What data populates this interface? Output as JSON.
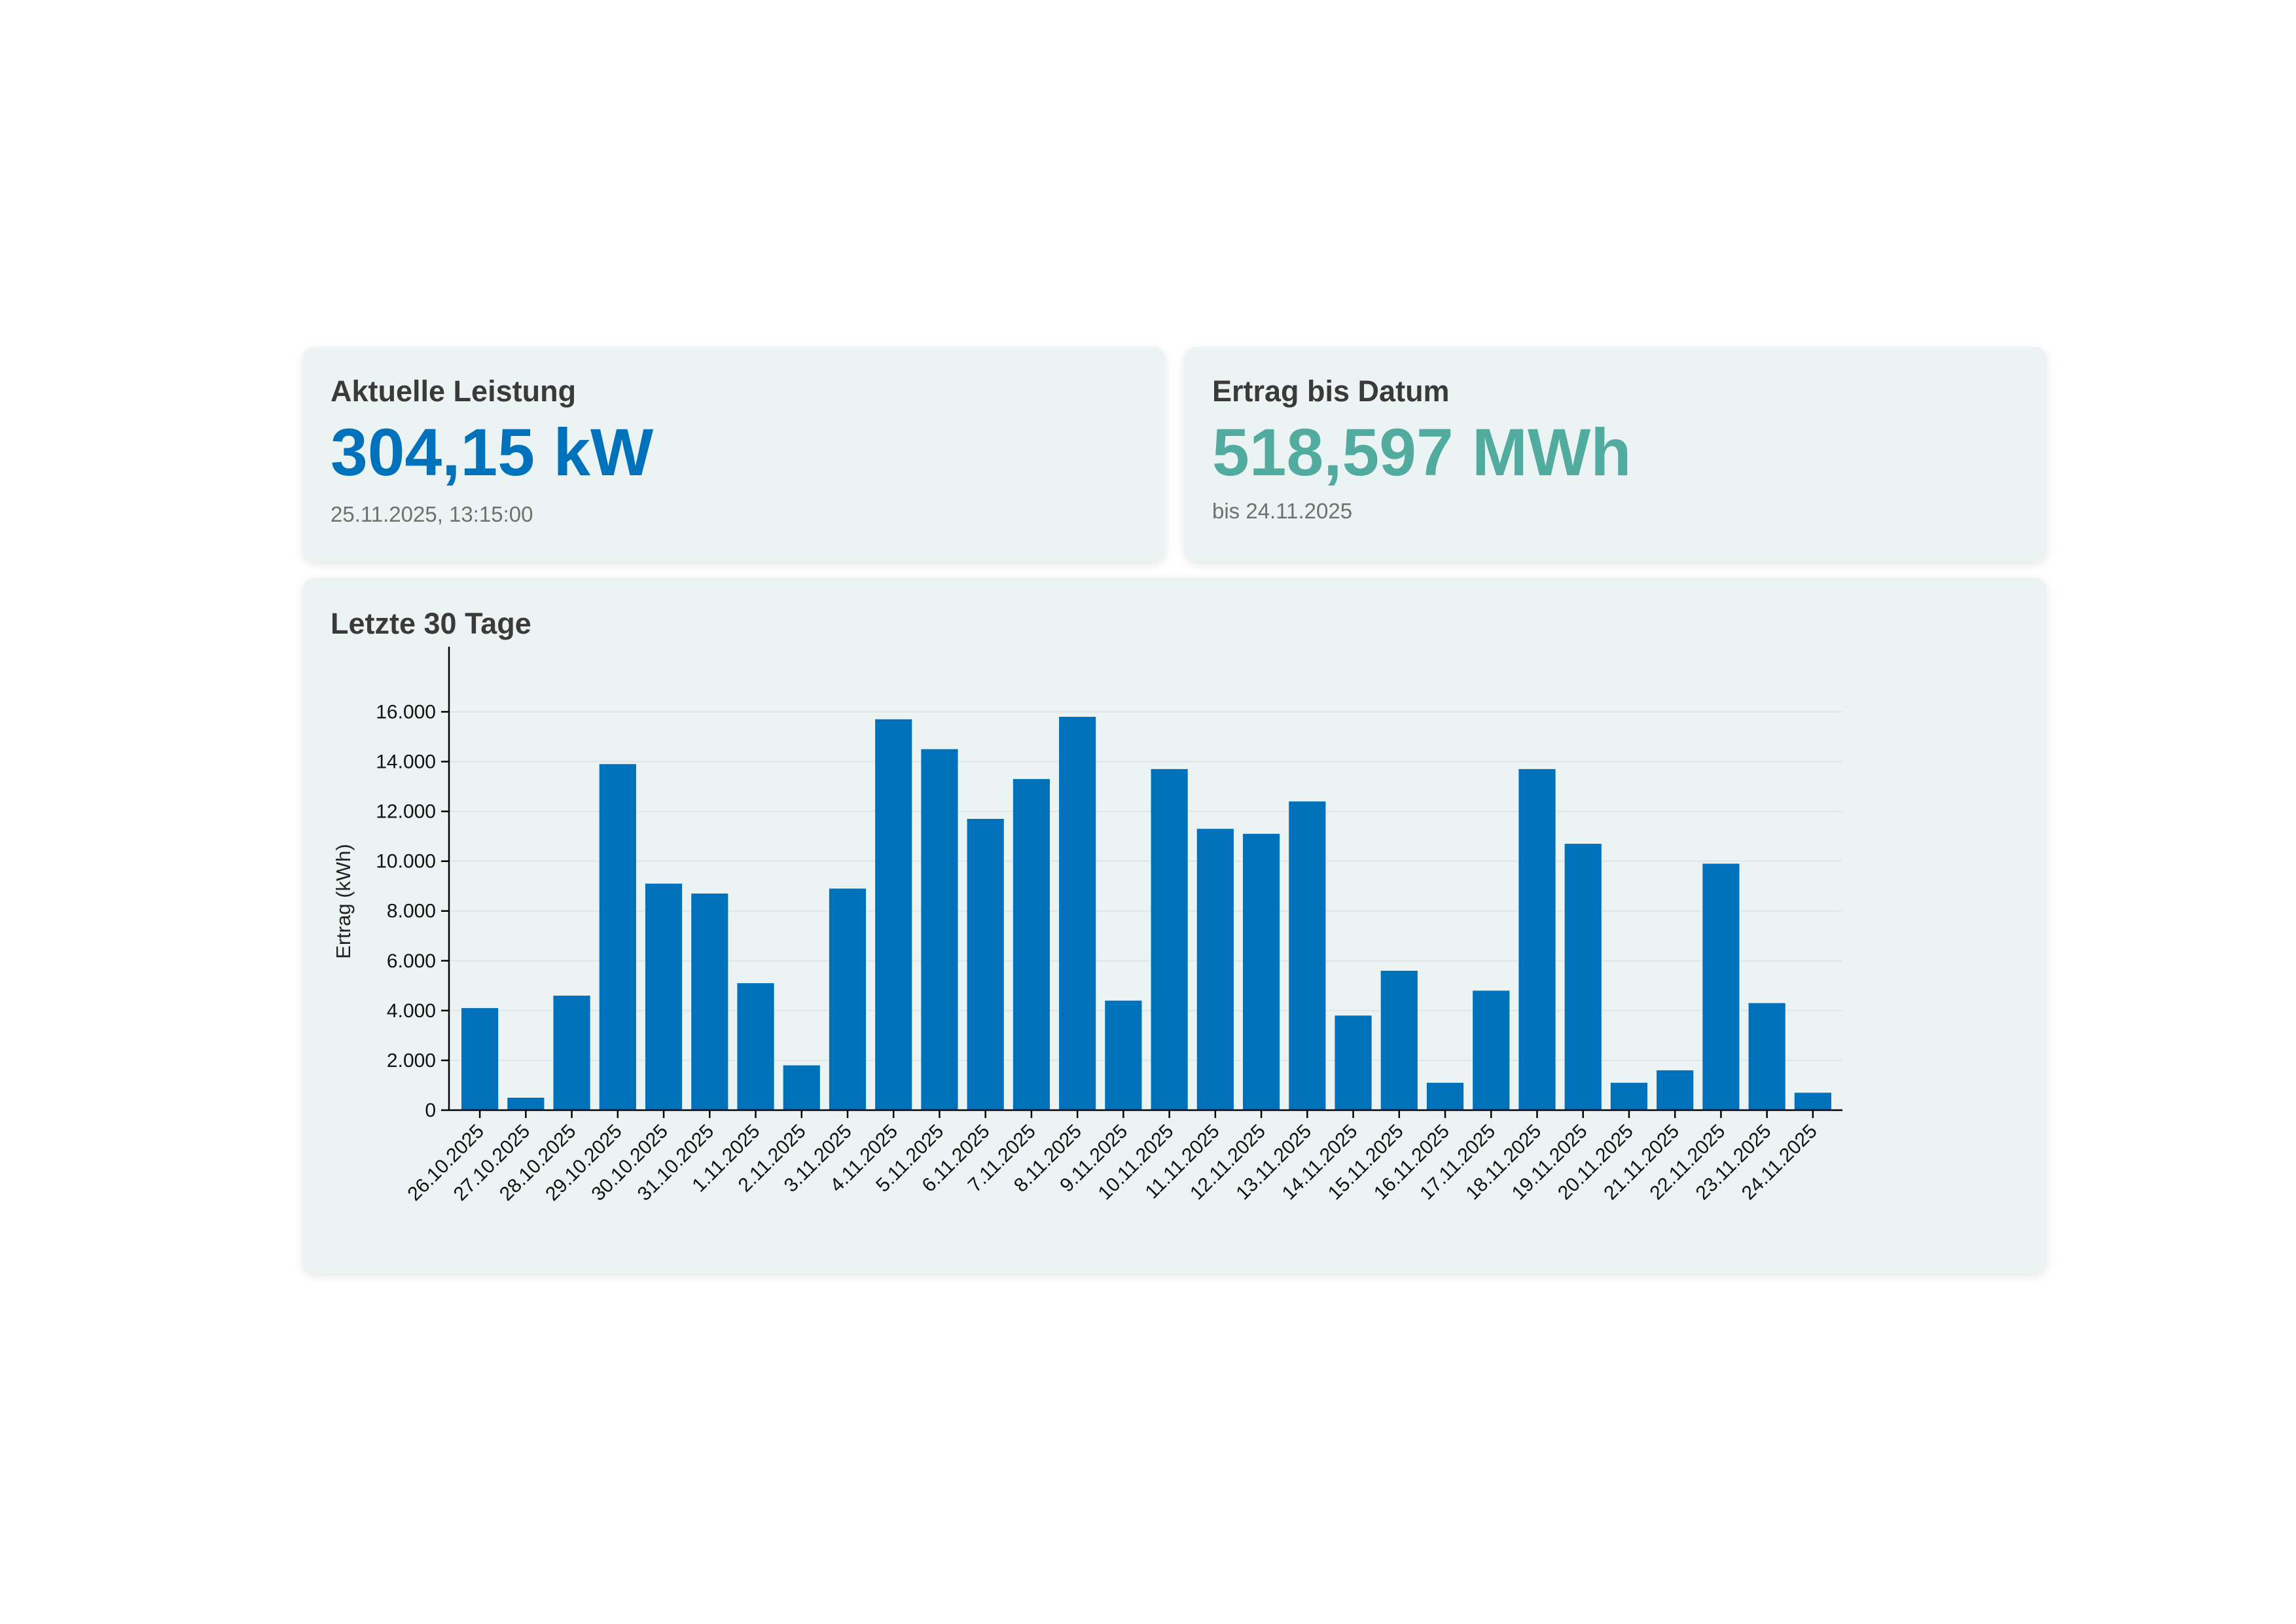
{
  "current_power": {
    "title": "Aktuelle Leistung",
    "value": "304,15 kW",
    "timestamp": "25.11.2025, 13:15:00",
    "color": "#0072bc"
  },
  "yield_to_date": {
    "title": "Ertrag bis Datum",
    "value": "518,597 MWh",
    "subtitle": "bis 24.11.2025",
    "color": "#52ab9f"
  },
  "chart_card": {
    "title": "Letzte 30 Tage"
  },
  "chart_data": {
    "type": "bar",
    "title": "",
    "ylabel": "Ertrag (kWh)",
    "xlabel": "",
    "ylim": [
      0,
      17300
    ],
    "yticks": [
      0,
      2000,
      4000,
      6000,
      8000,
      10000,
      12000,
      14000,
      16000
    ],
    "ytick_labels": [
      "0",
      "2.000",
      "4.000",
      "6.000",
      "8.000",
      "10.000",
      "12.000",
      "14.000",
      "16.000"
    ],
    "grid": true,
    "bar_color": "#0072bc",
    "categories": [
      "26.10.2025",
      "27.10.2025",
      "28.10.2025",
      "29.10.2025",
      "30.10.2025",
      "31.10.2025",
      "1.11.2025",
      "2.11.2025",
      "3.11.2025",
      "4.11.2025",
      "5.11.2025",
      "6.11.2025",
      "7.11.2025",
      "8.11.2025",
      "9.11.2025",
      "10.11.2025",
      "11.11.2025",
      "12.11.2025",
      "13.11.2025",
      "14.11.2025",
      "15.11.2025",
      "16.11.2025",
      "17.11.2025",
      "18.11.2025",
      "19.11.2025",
      "20.11.2025",
      "21.11.2025",
      "22.11.2025",
      "23.11.2025",
      "24.11.2025"
    ],
    "values": [
      4100,
      500,
      4600,
      13900,
      9100,
      8700,
      5100,
      1800,
      8900,
      15700,
      14500,
      11700,
      13300,
      15800,
      4400,
      13700,
      11300,
      11100,
      12400,
      3800,
      5600,
      1100,
      4800,
      13700,
      10700,
      1100,
      1600,
      9900,
      4300,
      700
    ]
  }
}
